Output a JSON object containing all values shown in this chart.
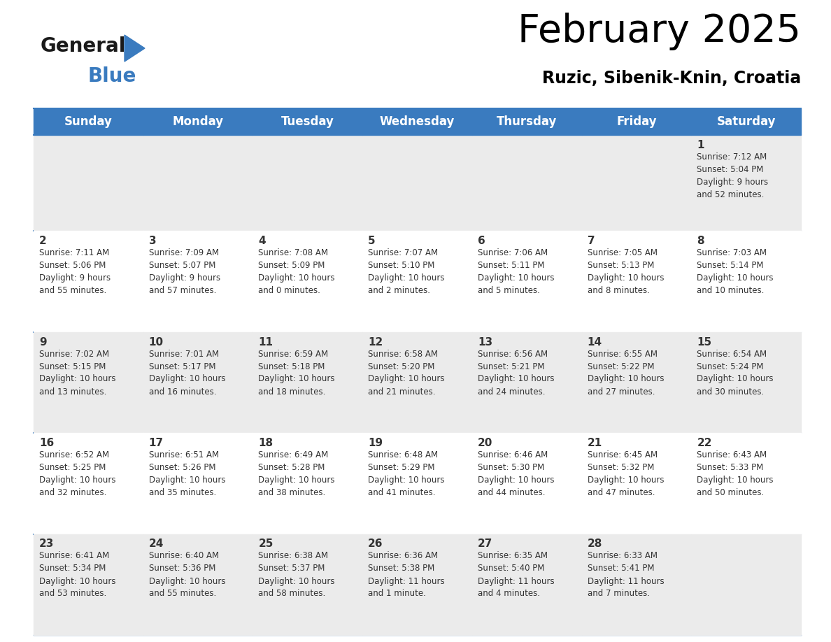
{
  "title": "February 2025",
  "subtitle": "Ruzic, Sibenik-Knin, Croatia",
  "days_of_week": [
    "Sunday",
    "Monday",
    "Tuesday",
    "Wednesday",
    "Thursday",
    "Friday",
    "Saturday"
  ],
  "header_bg_color": "#3a7bbf",
  "header_text_color": "#ffffff",
  "cell_bg_color_white": "#ffffff",
  "cell_bg_color_gray": "#ebebeb",
  "separator_color": "#3a7bbf",
  "title_color": "#000000",
  "subtitle_color": "#000000",
  "cell_text_color": "#333333",
  "day_num_color": "#333333",
  "logo_black": "#1a1a1a",
  "logo_blue": "#3a7bbf",
  "calendar_data": [
    {
      "day": 1,
      "row": 0,
      "col": 6,
      "sunrise": "7:12 AM",
      "sunset": "5:04 PM",
      "daylight": "9 hours and 52 minutes."
    },
    {
      "day": 2,
      "row": 1,
      "col": 0,
      "sunrise": "7:11 AM",
      "sunset": "5:06 PM",
      "daylight": "9 hours and 55 minutes."
    },
    {
      "day": 3,
      "row": 1,
      "col": 1,
      "sunrise": "7:09 AM",
      "sunset": "5:07 PM",
      "daylight": "9 hours and 57 minutes."
    },
    {
      "day": 4,
      "row": 1,
      "col": 2,
      "sunrise": "7:08 AM",
      "sunset": "5:09 PM",
      "daylight": "10 hours and 0 minutes."
    },
    {
      "day": 5,
      "row": 1,
      "col": 3,
      "sunrise": "7:07 AM",
      "sunset": "5:10 PM",
      "daylight": "10 hours and 2 minutes."
    },
    {
      "day": 6,
      "row": 1,
      "col": 4,
      "sunrise": "7:06 AM",
      "sunset": "5:11 PM",
      "daylight": "10 hours and 5 minutes."
    },
    {
      "day": 7,
      "row": 1,
      "col": 5,
      "sunrise": "7:05 AM",
      "sunset": "5:13 PM",
      "daylight": "10 hours and 8 minutes."
    },
    {
      "day": 8,
      "row": 1,
      "col": 6,
      "sunrise": "7:03 AM",
      "sunset": "5:14 PM",
      "daylight": "10 hours and 10 minutes."
    },
    {
      "day": 9,
      "row": 2,
      "col": 0,
      "sunrise": "7:02 AM",
      "sunset": "5:15 PM",
      "daylight": "10 hours and 13 minutes."
    },
    {
      "day": 10,
      "row": 2,
      "col": 1,
      "sunrise": "7:01 AM",
      "sunset": "5:17 PM",
      "daylight": "10 hours and 16 minutes."
    },
    {
      "day": 11,
      "row": 2,
      "col": 2,
      "sunrise": "6:59 AM",
      "sunset": "5:18 PM",
      "daylight": "10 hours and 18 minutes."
    },
    {
      "day": 12,
      "row": 2,
      "col": 3,
      "sunrise": "6:58 AM",
      "sunset": "5:20 PM",
      "daylight": "10 hours and 21 minutes."
    },
    {
      "day": 13,
      "row": 2,
      "col": 4,
      "sunrise": "6:56 AM",
      "sunset": "5:21 PM",
      "daylight": "10 hours and 24 minutes."
    },
    {
      "day": 14,
      "row": 2,
      "col": 5,
      "sunrise": "6:55 AM",
      "sunset": "5:22 PM",
      "daylight": "10 hours and 27 minutes."
    },
    {
      "day": 15,
      "row": 2,
      "col": 6,
      "sunrise": "6:54 AM",
      "sunset": "5:24 PM",
      "daylight": "10 hours and 30 minutes."
    },
    {
      "day": 16,
      "row": 3,
      "col": 0,
      "sunrise": "6:52 AM",
      "sunset": "5:25 PM",
      "daylight": "10 hours and 32 minutes."
    },
    {
      "day": 17,
      "row": 3,
      "col": 1,
      "sunrise": "6:51 AM",
      "sunset": "5:26 PM",
      "daylight": "10 hours and 35 minutes."
    },
    {
      "day": 18,
      "row": 3,
      "col": 2,
      "sunrise": "6:49 AM",
      "sunset": "5:28 PM",
      "daylight": "10 hours and 38 minutes."
    },
    {
      "day": 19,
      "row": 3,
      "col": 3,
      "sunrise": "6:48 AM",
      "sunset": "5:29 PM",
      "daylight": "10 hours and 41 minutes."
    },
    {
      "day": 20,
      "row": 3,
      "col": 4,
      "sunrise": "6:46 AM",
      "sunset": "5:30 PM",
      "daylight": "10 hours and 44 minutes."
    },
    {
      "day": 21,
      "row": 3,
      "col": 5,
      "sunrise": "6:45 AM",
      "sunset": "5:32 PM",
      "daylight": "10 hours and 47 minutes."
    },
    {
      "day": 22,
      "row": 3,
      "col": 6,
      "sunrise": "6:43 AM",
      "sunset": "5:33 PM",
      "daylight": "10 hours and 50 minutes."
    },
    {
      "day": 23,
      "row": 4,
      "col": 0,
      "sunrise": "6:41 AM",
      "sunset": "5:34 PM",
      "daylight": "10 hours and 53 minutes."
    },
    {
      "day": 24,
      "row": 4,
      "col": 1,
      "sunrise": "6:40 AM",
      "sunset": "5:36 PM",
      "daylight": "10 hours and 55 minutes."
    },
    {
      "day": 25,
      "row": 4,
      "col": 2,
      "sunrise": "6:38 AM",
      "sunset": "5:37 PM",
      "daylight": "10 hours and 58 minutes."
    },
    {
      "day": 26,
      "row": 4,
      "col": 3,
      "sunrise": "6:36 AM",
      "sunset": "5:38 PM",
      "daylight": "11 hours and 1 minute."
    },
    {
      "day": 27,
      "row": 4,
      "col": 4,
      "sunrise": "6:35 AM",
      "sunset": "5:40 PM",
      "daylight": "11 hours and 4 minutes."
    },
    {
      "day": 28,
      "row": 4,
      "col": 5,
      "sunrise": "6:33 AM",
      "sunset": "5:41 PM",
      "daylight": "11 hours and 7 minutes."
    }
  ]
}
